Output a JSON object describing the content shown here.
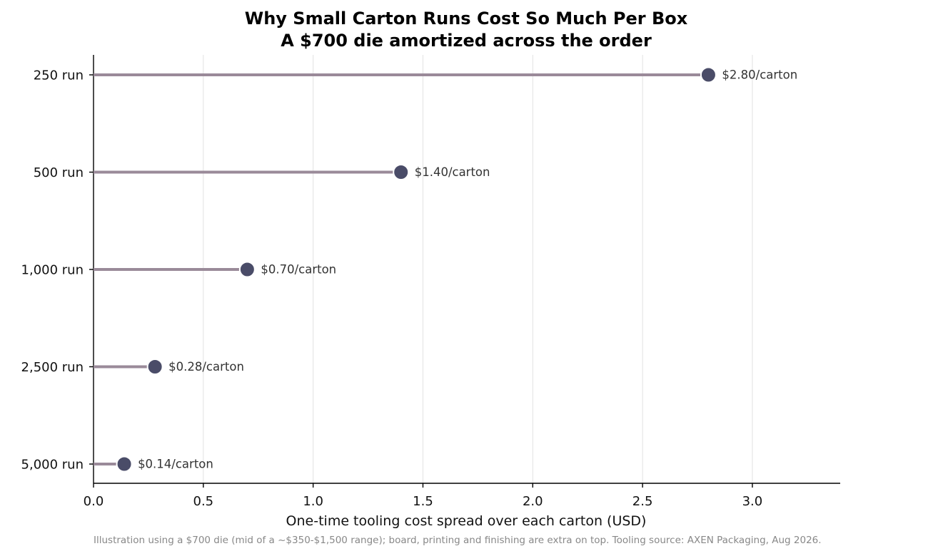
{
  "chart_data": {
    "type": "lollipop",
    "title": "Why Small Carton Runs Cost So Much Per Box",
    "subtitle": "A $700 die amortized across the order",
    "xlabel": "One-time tooling cost spread over each carton (USD)",
    "ylabel": "",
    "xlim": [
      0,
      3.4
    ],
    "x_ticks": [
      0.0,
      0.5,
      1.0,
      1.5,
      2.0,
      2.5,
      3.0
    ],
    "x_tick_labels": [
      "0.0",
      "0.5",
      "1.0",
      "1.5",
      "2.0",
      "2.5",
      "3.0"
    ],
    "grid": "vertical",
    "categories": [
      "250 run",
      "500 run",
      "1,000 run",
      "2,500 run",
      "5,000 run"
    ],
    "values": [
      2.8,
      1.4,
      0.7,
      0.28,
      0.14
    ],
    "value_labels": [
      "$2.80/carton",
      "$1.40/carton",
      "$0.70/carton",
      "$0.28/carton",
      "$0.14/carton"
    ],
    "colors": {
      "stem": "#9a8a99",
      "dot": "#4a4c68"
    },
    "footnote": "Illustration using a $700 die (mid of a ~$350-$1,500 range); board, printing and finishing are extra on top. Tooling source: AXEN Packaging, Aug 2026."
  }
}
